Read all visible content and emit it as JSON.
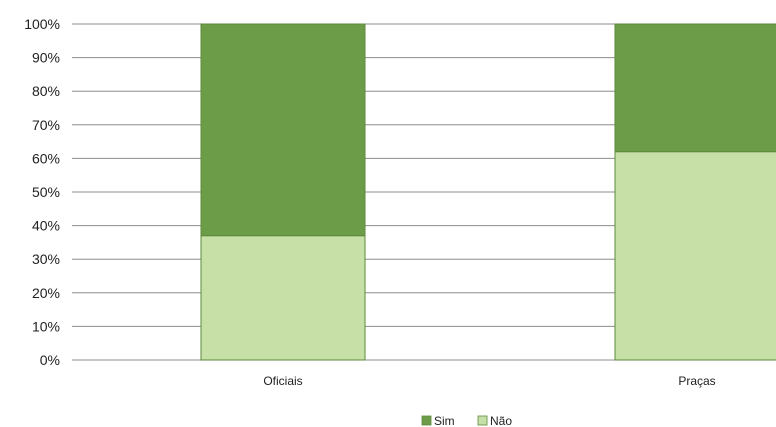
{
  "chart_data": {
    "type": "bar",
    "stacked": true,
    "categories": [
      "Oficiais",
      "Praças"
    ],
    "series": [
      {
        "name": "Não",
        "values": [
          37,
          62
        ],
        "color": "#c6e0a8"
      },
      {
        "name": "Sim",
        "values": [
          63,
          38
        ],
        "color": "#6d9c48"
      }
    ],
    "ylim": [
      0,
      100
    ],
    "yticks": [
      "0%",
      "10%",
      "20%",
      "30%",
      "40%",
      "50%",
      "60%",
      "70%",
      "80%",
      "90%",
      "100%"
    ],
    "grid": true,
    "legend": {
      "position": "bottom-center",
      "order": [
        "Sim",
        "Não"
      ]
    }
  }
}
